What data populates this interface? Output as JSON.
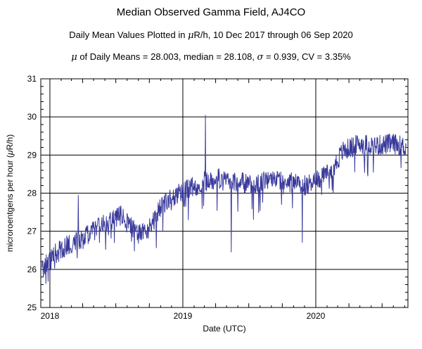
{
  "chart_data": {
    "type": "line",
    "title": "Median Observed Gamma Field, AJ4CO",
    "subtitle_prefix": "Daily Mean Values Plotted in ",
    "subtitle_mu": "μ",
    "subtitle_suffix": "R/h, 10 Dec 2017 through 06 Sep 2020",
    "stats_mu": "μ",
    "stats_text_1": " of Daily Means = 28.003,   median = 28.108,   ",
    "stats_sigma": "σ",
    "stats_text_2": " = 0.939,   CV = 3.35%",
    "xlabel": "Date (UTC)",
    "ylabel_prefix": "microroentgens per hour (",
    "ylabel_mu": "μ",
    "ylabel_suffix": "R/h)",
    "ylim": [
      25,
      31
    ],
    "yticks": [
      25,
      26,
      27,
      28,
      29,
      30,
      31
    ],
    "xlim": [
      "2017-12-07",
      "2020-09-10"
    ],
    "xticks": [
      {
        "date": "2018-01-01",
        "label": "2018"
      },
      {
        "date": "2019-01-01",
        "label": "2019"
      },
      {
        "date": "2020-01-01",
        "label": "2020"
      }
    ],
    "grid": true,
    "line_color": "#3a3a9c",
    "series": [
      {
        "x": [
          "2017-12-10",
          "2018-01-15",
          "2018-03-01",
          "2018-04-15",
          "2018-06-01",
          "2018-07-15",
          "2018-08-15",
          "2018-09-01",
          "2018-10-01",
          "2018-11-01",
          "2018-12-01",
          "2019-01-15",
          "2019-03-01",
          "2019-04-15",
          "2019-06-01",
          "2019-07-15",
          "2019-09-01",
          "2019-10-15",
          "2019-12-01",
          "2020-01-15",
          "2020-02-15",
          "2020-03-15",
          "2020-05-01",
          "2020-06-15",
          "2020-08-01",
          "2020-09-06"
        ],
        "y": [
          26.0,
          26.4,
          26.7,
          26.9,
          27.2,
          27.4,
          27.1,
          26.9,
          27.1,
          27.6,
          27.9,
          28.1,
          28.3,
          28.4,
          28.3,
          28.2,
          28.4,
          28.3,
          28.2,
          28.4,
          28.6,
          29.1,
          29.3,
          29.25,
          29.3,
          29.2
        ]
      }
    ],
    "annotations": [
      {
        "x": "2019-03-04",
        "y": 30.05
      },
      {
        "x": "2019-05-14",
        "y": 26.45
      },
      {
        "x": "2019-11-25",
        "y": 26.7
      },
      {
        "x": "2018-03-20",
        "y": 27.95
      }
    ]
  }
}
